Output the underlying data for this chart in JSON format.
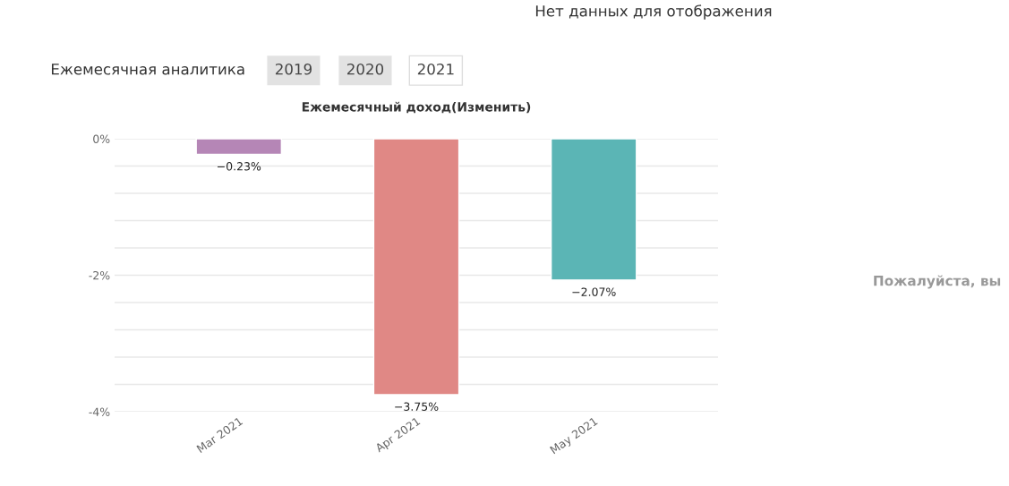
{
  "chart_data": {
    "type": "bar",
    "title": "Ежемесячный доход(Изменить)",
    "categories": [
      "Mar 2021",
      "Apr 2021",
      "May 2021"
    ],
    "values": [
      -0.23,
      -3.75,
      -2.07
    ],
    "colors": [
      "#b586b6",
      "#e08885",
      "#5bb5b5"
    ],
    "value_labels": [
      "−0.23%",
      "−3.75%",
      "−2.07%"
    ],
    "ylim": [
      -4,
      0
    ],
    "yticks": [
      {
        "value": 0,
        "label": "0%"
      },
      {
        "value": -0.4,
        "label": null
      },
      {
        "value": -0.8,
        "label": null
      },
      {
        "value": -1.2,
        "label": null
      },
      {
        "value": -1.6,
        "label": null
      },
      {
        "value": -2,
        "label": "-2%"
      },
      {
        "value": -2.4,
        "label": null
      },
      {
        "value": -2.8,
        "label": null
      },
      {
        "value": -3.2,
        "label": null
      },
      {
        "value": -3.6,
        "label": null
      },
      {
        "value": -4,
        "label": "-4%"
      }
    ],
    "grid": "y",
    "legend": false,
    "annotations": [
      "Нет данных для отображения",
      "Ежемесячная аналитика",
      "2019",
      "2020",
      "2021",
      "Пожалуйста, вы"
    ]
  }
}
